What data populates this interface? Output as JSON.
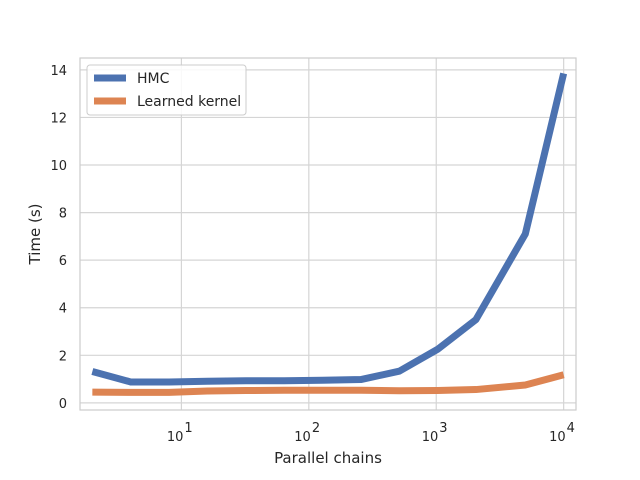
{
  "chart_data": {
    "type": "line",
    "xscale": "log",
    "xlabel": "Parallel chains",
    "ylabel": "Time (s)",
    "xlim": [
      1.6,
      12500
    ],
    "ylim": [
      -0.3,
      14.5
    ],
    "grid": true,
    "legend_position": "top-left",
    "x_ticks": [
      {
        "value": 10,
        "base": "10",
        "exp": "1"
      },
      {
        "value": 100,
        "base": "10",
        "exp": "2"
      },
      {
        "value": 1000,
        "base": "10",
        "exp": "3"
      },
      {
        "value": 10000,
        "base": "10",
        "exp": "4"
      }
    ],
    "y_ticks": [
      {
        "value": 0,
        "label": "0"
      },
      {
        "value": 2,
        "label": "2"
      },
      {
        "value": 4,
        "label": "4"
      },
      {
        "value": 6,
        "label": "6"
      },
      {
        "value": 8,
        "label": "8"
      },
      {
        "value": 10,
        "label": "10"
      },
      {
        "value": 12,
        "label": "12"
      },
      {
        "value": 14,
        "label": "14"
      }
    ],
    "x": [
      2,
      4,
      8,
      16,
      32,
      64,
      128,
      256,
      512,
      1024,
      2048,
      5000,
      10000
    ],
    "series": [
      {
        "name": "HMC",
        "color": "#4c72b0",
        "values": [
          1.32,
          0.88,
          0.88,
          0.91,
          0.93,
          0.93,
          0.95,
          0.98,
          1.33,
          2.25,
          3.5,
          7.1,
          13.85
        ]
      },
      {
        "name": "Learned kernel",
        "color": "#dd8452",
        "values": [
          0.45,
          0.44,
          0.44,
          0.5,
          0.52,
          0.53,
          0.53,
          0.53,
          0.51,
          0.52,
          0.56,
          0.75,
          1.18
        ]
      }
    ]
  }
}
